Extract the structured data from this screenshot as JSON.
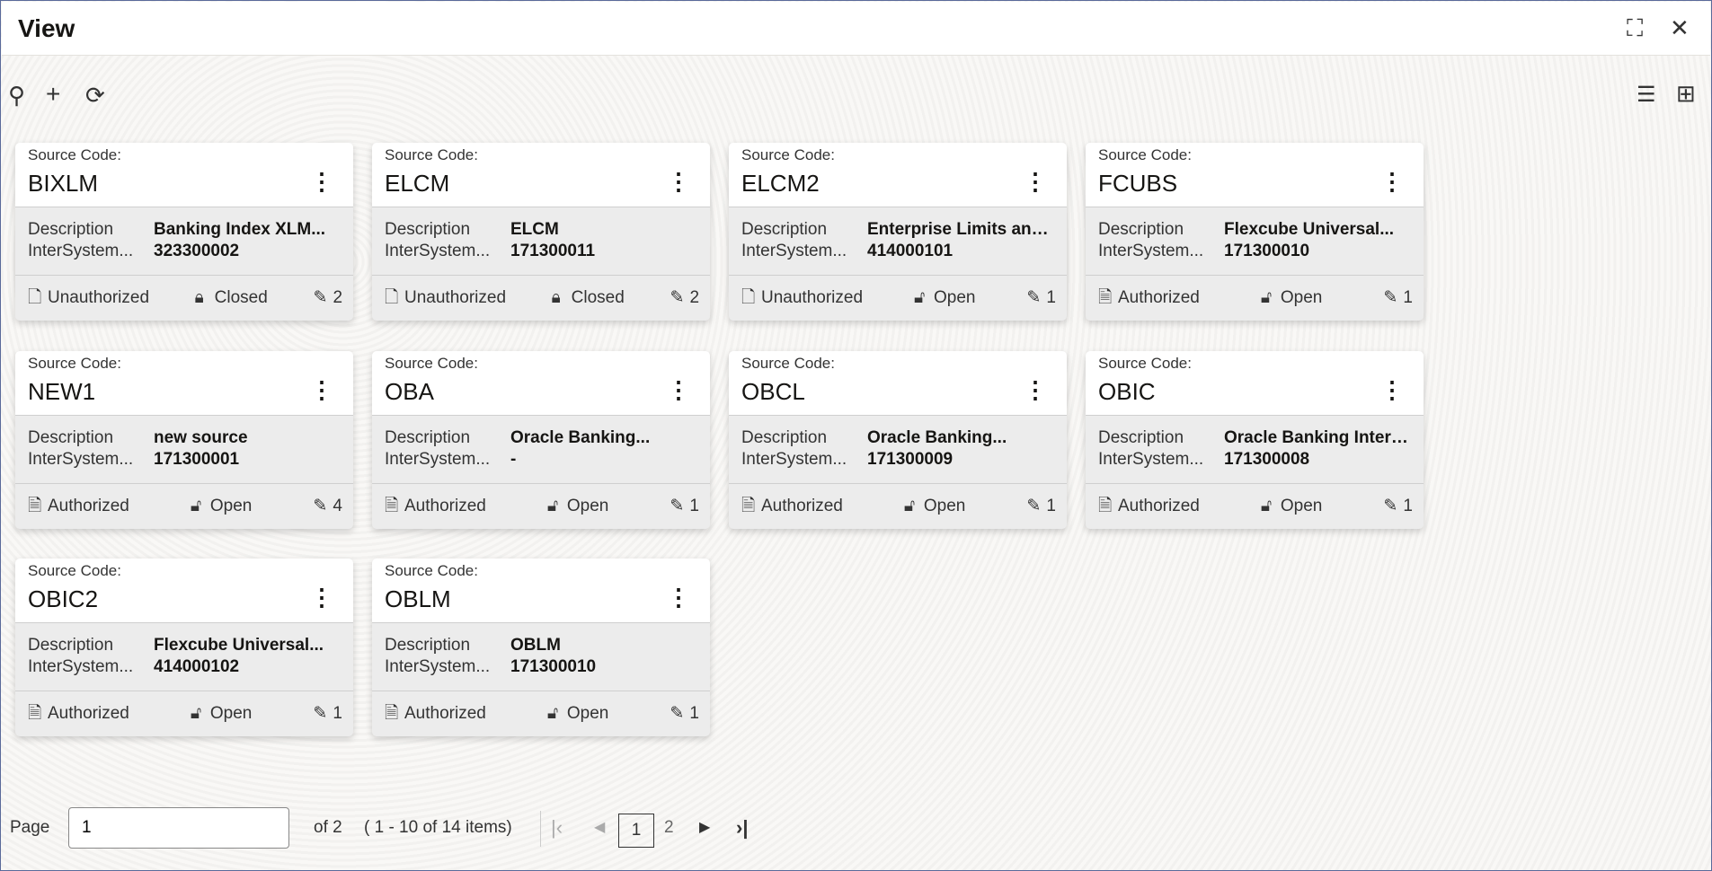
{
  "window": {
    "title": "View",
    "minimize_icon": "collapse-icon",
    "close_icon": "close-icon"
  },
  "toolbar": {
    "icons": [
      "search-icon",
      "add-icon",
      "refresh-icon"
    ],
    "view_icons": [
      "list-view-icon",
      "grid-view-icon"
    ]
  },
  "card_labels": {
    "source_code": "Source Code:",
    "description": "Description",
    "intersystem": "InterSystem..."
  },
  "cards": [
    {
      "code": "BIXLM",
      "description": "Banking Index XLM...",
      "intersystem": "323300002",
      "auth": "Unauthorized",
      "lock": "Closed",
      "edits": "2"
    },
    {
      "code": "ELCM",
      "description": "ELCM",
      "intersystem": "171300011",
      "auth": "Unauthorized",
      "lock": "Closed",
      "edits": "2"
    },
    {
      "code": "ELCM2",
      "description": "Enterprise Limits and...",
      "intersystem": "414000101",
      "auth": "Unauthorized",
      "lock": "Open",
      "edits": "1"
    },
    {
      "code": "FCUBS",
      "description": "Flexcube Universal...",
      "intersystem": "171300010",
      "auth": "Authorized",
      "lock": "Open",
      "edits": "1"
    },
    {
      "code": "NEW1",
      "description": "new source",
      "intersystem": "171300001",
      "auth": "Authorized",
      "lock": "Open",
      "edits": "4"
    },
    {
      "code": "OBA",
      "description": "Oracle Banking...",
      "intersystem": "-",
      "auth": "Authorized",
      "lock": "Open",
      "edits": "1"
    },
    {
      "code": "OBCL",
      "description": "Oracle Banking...",
      "intersystem": "171300009",
      "auth": "Authorized",
      "lock": "Open",
      "edits": "1"
    },
    {
      "code": "OBIC",
      "description": "Oracle Banking Intere...",
      "intersystem": "171300008",
      "auth": "Authorized",
      "lock": "Open",
      "edits": "1"
    },
    {
      "code": "OBIC2",
      "description": "Flexcube Universal...",
      "intersystem": "414000102",
      "auth": "Authorized",
      "lock": "Open",
      "edits": "1"
    },
    {
      "code": "OBLM",
      "description": "OBLM",
      "intersystem": "171300010",
      "auth": "Authorized",
      "lock": "Open",
      "edits": "1"
    }
  ],
  "pagination": {
    "page_label": "Page",
    "page_value": "1",
    "of_label": "of 2",
    "items_label": "( 1 - 10 of 14 items)",
    "pages": [
      "1",
      "2"
    ],
    "current_page": "1"
  }
}
